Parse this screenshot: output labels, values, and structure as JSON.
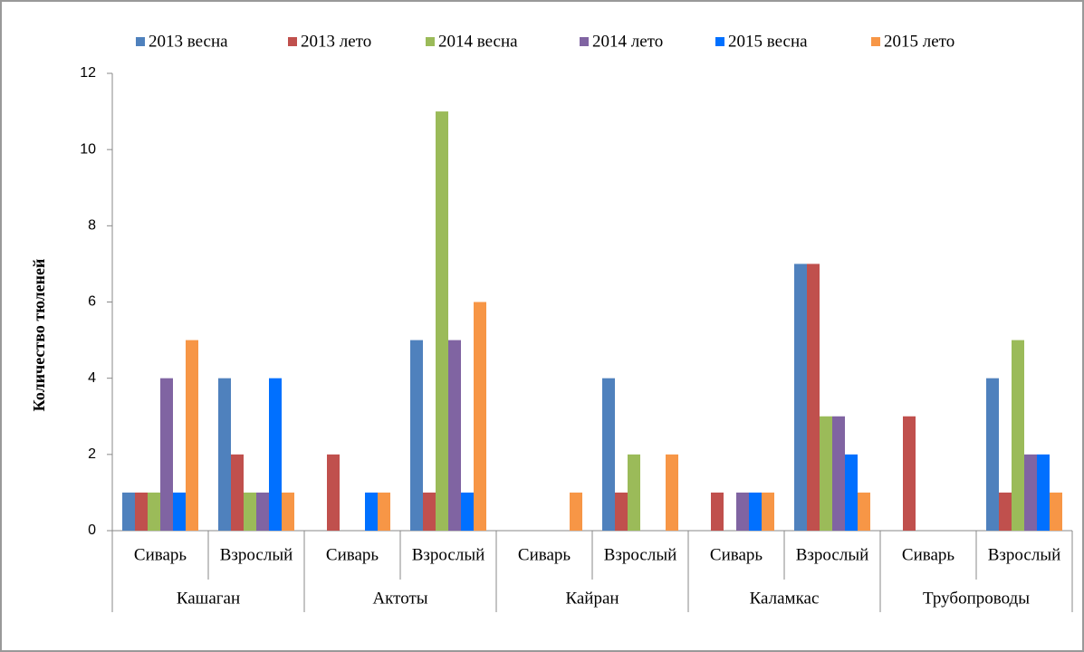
{
  "chart_data": {
    "type": "bar",
    "y_label": "Количество тюленей",
    "categories": [
      "Сиварь",
      "Взрослый",
      "Сиварь",
      "Взрослый",
      "Сиварь",
      "Взрослый",
      "Сиварь",
      "Взрослый",
      "Сиварь",
      "Взрослый"
    ],
    "groups": [
      "Кашаган",
      "Актоты",
      "Кайран",
      "Каламкас",
      "Трубопроводы"
    ],
    "series": [
      {
        "name": "2013 весна",
        "color": "#4f81bd",
        "values": [
          1,
          4,
          0,
          5,
          0,
          4,
          0,
          7,
          0,
          4
        ]
      },
      {
        "name": "2013 лето",
        "color": "#c0504d",
        "values": [
          1,
          2,
          2,
          1,
          0,
          1,
          1,
          7,
          3,
          1
        ]
      },
      {
        "name": "2014 весна",
        "color": "#9bbb59",
        "values": [
          1,
          1,
          0,
          11,
          0,
          2,
          0,
          3,
          0,
          5
        ]
      },
      {
        "name": "2014 лето",
        "color": "#8064a2",
        "values": [
          4,
          1,
          0,
          5,
          0,
          0,
          1,
          3,
          0,
          2
        ]
      },
      {
        "name": "2015 весна",
        "color": "#0070ff",
        "values": [
          1,
          4,
          1,
          1,
          0,
          0,
          1,
          2,
          0,
          2
        ]
      },
      {
        "name": "2015 лето",
        "color": "#f79646",
        "values": [
          5,
          1,
          1,
          6,
          1,
          2,
          1,
          1,
          0,
          1
        ]
      }
    ],
    "ylim": [
      0,
      12
    ],
    "yticks": [
      0,
      2,
      4,
      6,
      8,
      10,
      12
    ],
    "grid": false,
    "legend": "top"
  }
}
